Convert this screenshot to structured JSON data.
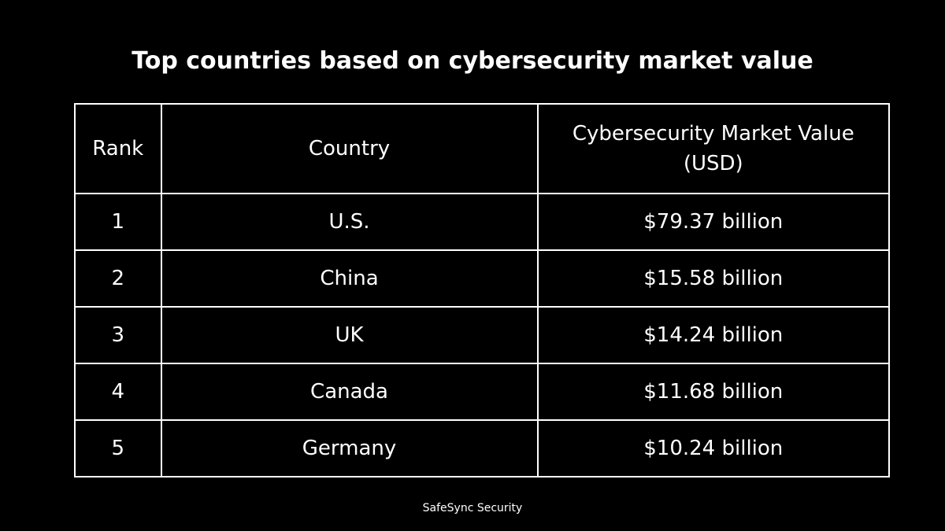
{
  "title": "Top countries based on cybersecurity market value",
  "footer": "SafeSync Security",
  "colors": {
    "background": "#000000",
    "text": "#ffffff",
    "border": "#ffffff"
  },
  "chart_data": {
    "type": "table",
    "title": "Top countries based on cybersecurity market value",
    "columns": [
      "Rank",
      "Country",
      "Cybersecurity Market Value (USD)"
    ],
    "rows": [
      [
        "1",
        "U.S.",
        "$79.37 billion"
      ],
      [
        "2",
        "China",
        "$15.58 billion"
      ],
      [
        "3",
        "UK",
        "$14.24 billion"
      ],
      [
        "4",
        "Canada",
        "$11.68 billion"
      ],
      [
        "5",
        "Germany",
        "$10.24 billion"
      ]
    ]
  }
}
